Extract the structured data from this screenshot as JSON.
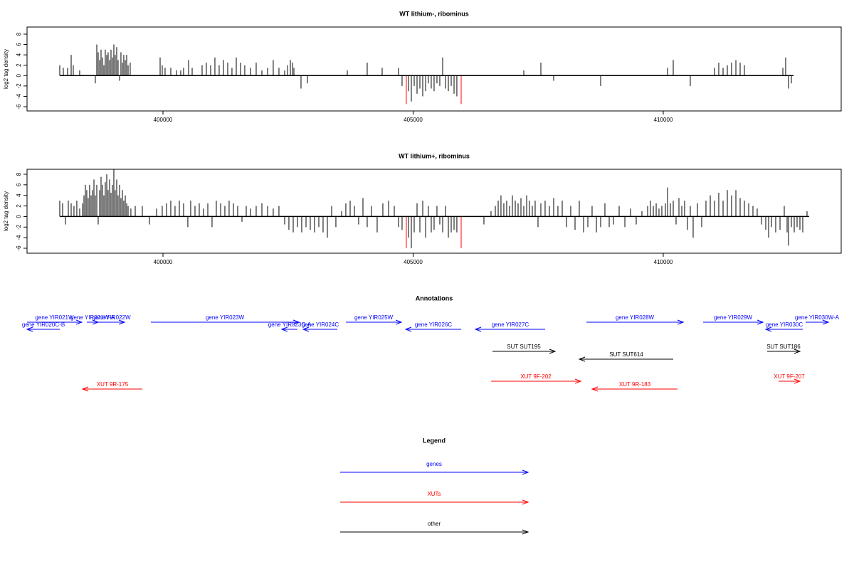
{
  "chart_data": [
    {
      "type": "spike",
      "title": "WT lithium-, ribominus",
      "y_label": "log2 tag density",
      "xlim": [
        397283,
        413556
      ],
      "ylim": [
        -6.82,
        9.37
      ],
      "xticks": [
        400000,
        405000,
        410000
      ],
      "yticks": [
        -6,
        -4,
        -2,
        0,
        2,
        4,
        6,
        8
      ],
      "series": [
        {
          "color": "#000000",
          "x": [
            397937,
            398008,
            398094,
            398165,
            398207,
            398335,
            398648,
            398677,
            398705,
            398734,
            398762,
            398790,
            398819,
            398847,
            398876,
            398904,
            398933,
            398961,
            398990,
            399018,
            399046,
            399075,
            399103,
            399132,
            399160,
            399189,
            399217,
            399246,
            399274,
            399303,
            399345,
            399943,
            399985,
            400042,
            400156,
            400270,
            400355,
            400412,
            400512,
            400583,
            400782,
            400867,
            400953,
            401038,
            401123,
            401209,
            401294,
            401379,
            401465,
            401550,
            401635,
            401749,
            401863,
            401977,
            402091,
            402204,
            402318,
            402432,
            402489,
            402546,
            402588,
            402617,
            402759,
            402887,
            403684,
            404082,
            404381,
            404708,
            404779,
            404907,
            404964,
            405021,
            405078,
            405135,
            405192,
            405249,
            405305,
            405362,
            405419,
            405476,
            405533,
            405590,
            405647,
            405704,
            405761,
            405818,
            405874,
            407212,
            407553,
            407809,
            408748,
            410085,
            410199,
            410540,
            411024,
            411109,
            411195,
            411280,
            411365,
            411451,
            411536,
            411621,
            412390,
            412446,
            412503,
            412560
          ],
          "values": [
            2,
            1.5,
            1.5,
            4,
            2,
            1,
            -1.5,
            6,
            4.5,
            3,
            5,
            3.5,
            2,
            5,
            4,
            4.5,
            3,
            5,
            3.5,
            6,
            4,
            5.5,
            3,
            -1,
            4.5,
            2.5,
            4,
            3,
            4,
            2,
            2.5,
            3.5,
            2,
            1.5,
            1.5,
            1,
            1,
            1.5,
            3,
            1.5,
            2,
            2.5,
            2,
            3.5,
            2,
            3,
            2.5,
            1.5,
            3.5,
            2.5,
            2,
            1.5,
            2.5,
            1,
            1.5,
            3,
            1.5,
            1,
            2,
            3,
            2.5,
            1.5,
            -2.5,
            -1.5,
            1,
            2.5,
            1.5,
            1.5,
            -2,
            -3,
            -5,
            -2,
            -3.5,
            -2.5,
            -4,
            -3,
            -1.5,
            -2.5,
            -3,
            -1.5,
            -2,
            3.5,
            -2.5,
            -3,
            -2,
            -3.5,
            -4,
            1,
            2.5,
            -1,
            -2,
            1.5,
            3,
            -2,
            1.5,
            2.5,
            1.5,
            2,
            2.5,
            3,
            2.5,
            2,
            1.5,
            3.5,
            -2.5,
            -1.5
          ]
        },
        {
          "color": "#ff0000",
          "x": [
            404864,
            405960
          ],
          "values": [
            -5.5,
            -5.5
          ]
        }
      ]
    },
    {
      "type": "spike",
      "title": "WT lithium+, ribominus",
      "y_label": "log2 tag density",
      "xlim": [
        397283,
        413556
      ],
      "ylim": [
        -6.94,
        8.94
      ],
      "xticks": [
        400000,
        405000,
        410000
      ],
      "yticks": [
        -6,
        -4,
        -2,
        0,
        2,
        4,
        6,
        8
      ],
      "series": [
        {
          "color": "#000000",
          "x": [
            397937,
            397994,
            398051,
            398108,
            398165,
            398221,
            398278,
            398335,
            398392,
            398421,
            398449,
            398477,
            398506,
            398534,
            398563,
            398591,
            398620,
            398648,
            398677,
            398705,
            398734,
            398762,
            398790,
            398819,
            398847,
            398876,
            398904,
            398933,
            398961,
            398990,
            399018,
            399046,
            399075,
            399103,
            399132,
            399160,
            399189,
            399217,
            399246,
            399274,
            399303,
            399359,
            399445,
            399587,
            399729,
            399872,
            399985,
            400071,
            400156,
            400241,
            400327,
            400412,
            400497,
            400554,
            400640,
            400725,
            400810,
            400896,
            400981,
            401066,
            401152,
            401237,
            401322,
            401408,
            401493,
            401579,
            401664,
            401749,
            401863,
            401977,
            402091,
            402204,
            402318,
            402432,
            402517,
            402603,
            402688,
            402773,
            402859,
            402944,
            403029,
            403115,
            403200,
            403286,
            403371,
            403456,
            403570,
            403655,
            403741,
            403826,
            403911,
            403997,
            404082,
            404167,
            404281,
            404395,
            404509,
            404623,
            404708,
            404779,
            404907,
            404964,
            405021,
            405078,
            405135,
            405192,
            405249,
            405305,
            405362,
            405419,
            405476,
            405533,
            405590,
            405647,
            405704,
            405761,
            405818,
            405874,
            406415,
            406557,
            406643,
            406700,
            406756,
            406813,
            406870,
            406927,
            406984,
            407041,
            407098,
            407155,
            407212,
            407269,
            407325,
            407382,
            407439,
            407496,
            407553,
            407638,
            407724,
            407809,
            407894,
            407980,
            408065,
            408150,
            408236,
            408321,
            408407,
            408492,
            408577,
            408663,
            408748,
            408833,
            408919,
            409004,
            409118,
            409232,
            409345,
            409459,
            409573,
            409687,
            409744,
            409801,
            409858,
            409914,
            409971,
            410042,
            410085,
            410142,
            410199,
            410256,
            410313,
            410370,
            410426,
            410483,
            410540,
            410597,
            410683,
            410768,
            410853,
            410939,
            411024,
            411109,
            411195,
            411280,
            411365,
            411451,
            411536,
            411621,
            411707,
            411792,
            411877,
            411963,
            412048,
            412105,
            412162,
            412247,
            412333,
            412418,
            412475,
            412503,
            412560,
            412617,
            412674,
            412731,
            412788,
            412873
          ],
          "values": [
            3,
            2.5,
            -1.5,
            3,
            2.5,
            2,
            3,
            1.5,
            2.5,
            4,
            6,
            5,
            3.5,
            6,
            4,
            5,
            7,
            4,
            6,
            -1.5,
            5,
            7.5,
            6,
            4,
            6.5,
            8,
            5,
            7,
            4.5,
            6,
            9,
            5,
            7,
            4,
            6,
            3.5,
            5,
            3,
            4,
            2.5,
            2,
            1.5,
            2,
            2,
            -1.5,
            1.5,
            2,
            2.5,
            3,
            2,
            3,
            2.5,
            -2,
            3,
            2,
            2.5,
            1.5,
            2.5,
            -2,
            3,
            2.5,
            2,
            3,
            2.5,
            2,
            -1,
            2,
            1.5,
            2,
            2.5,
            2,
            1.5,
            2,
            -1.5,
            -2.5,
            -3,
            -2,
            -3,
            -2,
            -2.5,
            -3,
            -2,
            -3,
            -4,
            2,
            -2,
            1,
            2.5,
            3,
            2,
            -1.5,
            3.5,
            -2,
            2,
            -3,
            2.5,
            3,
            2,
            -2,
            -2.5,
            -4,
            -6,
            -3,
            2.5,
            -3,
            3,
            -4,
            2,
            -3,
            -2.5,
            2,
            -1.5,
            -3,
            2,
            -4,
            -3,
            -2.5,
            -3,
            -1.5,
            1,
            2,
            3,
            4,
            2.5,
            3,
            2,
            4,
            3,
            2.5,
            3.5,
            2,
            4,
            3,
            2,
            3,
            -2,
            2.5,
            3,
            2,
            3.5,
            2,
            3,
            -2,
            2,
            -2.5,
            3,
            -3,
            -2,
            2,
            -3,
            -2,
            2.5,
            -2,
            -1.5,
            2,
            -2,
            1.5,
            -1.5,
            1,
            2,
            3,
            2,
            2.5,
            1.5,
            2,
            2.5,
            5.5,
            2.5,
            3,
            -1.5,
            3.5,
            2,
            3,
            -2.5,
            2,
            -4,
            2.5,
            -2,
            3,
            4,
            3,
            4.5,
            3,
            5,
            4,
            5,
            3.5,
            3,
            2.5,
            2,
            1.5,
            -1.5,
            -2.5,
            -4,
            -2,
            -3,
            -2.5,
            2,
            -3,
            -5.5,
            -2,
            -3,
            -2,
            -2.5,
            -3,
            1
          ]
        },
        {
          "color": "#ff0000",
          "x": [
            404864,
            405960
          ],
          "values": [
            -6,
            -6
          ]
        }
      ]
    }
  ],
  "annotations": {
    "title": "Annotations",
    "lanes": [
      {
        "features": [
          {
            "label": "gene YIR021W",
            "color": "#0000ff",
            "from": 397283,
            "to": 398378
          },
          {
            "label": "gene YIR021W-A",
            "color": "#0000ff",
            "from": 398478,
            "to": 398705
          },
          {
            "label": "gene YIR022W",
            "color": "#0000ff",
            "from": 398705,
            "to": 399232
          },
          {
            "label": "gene YIR023W",
            "color": "#0000ff",
            "from": 399758,
            "to": 402717
          },
          {
            "label": "gene YIR025W",
            "color": "#0000ff",
            "from": 403656,
            "to": 404766
          },
          {
            "label": "gene YIR028W",
            "color": "#0000ff",
            "from": 408464,
            "to": 410399
          },
          {
            "label": "gene YIR029W",
            "color": "#0000ff",
            "from": 410797,
            "to": 411992
          },
          {
            "label": "gene YIR030W-A",
            "color": "#0000ff",
            "from": 412845,
            "to": 413300
          }
        ]
      },
      {
        "features": [
          {
            "label": "gene YIR020C-B",
            "color": "#0000ff",
            "from": 397937,
            "to": 397283
          },
          {
            "label": "gene YIR023C-A",
            "color": "#0000ff",
            "from": 402688,
            "to": 402375
          },
          {
            "label": "gene YIR024C",
            "color": "#0000ff",
            "from": 403485,
            "to": 402802
          },
          {
            "label": "gene YIR026C",
            "color": "#0000ff",
            "from": 405960,
            "to": 404851
          },
          {
            "label": "gene YIR027C",
            "color": "#0000ff",
            "from": 407639,
            "to": 406245
          },
          {
            "label": "gene YIR030C",
            "color": "#0000ff",
            "from": 412788,
            "to": 412048
          }
        ]
      },
      {
        "features": [
          {
            "label": "SUT SUT195",
            "color": "#000000",
            "from": 406586,
            "to": 407838
          },
          {
            "label": "SUT SUT186",
            "color": "#000000",
            "from": 412077,
            "to": 412731
          }
        ]
      },
      {
        "features": [
          {
            "label": "SUT SUT614",
            "color": "#000000",
            "from": 410199,
            "to": 408322
          }
        ]
      },
      {
        "features": [
          {
            "label": "XUT 9F-202",
            "color": "#ff0000",
            "from": 406558,
            "to": 408350
          },
          {
            "label": "XUT 9F-207",
            "color": "#ff0000",
            "from": 412305,
            "to": 412731
          }
        ]
      },
      {
        "features": [
          {
            "label": "XUT 9R-175",
            "color": "#ff0000",
            "from": 399587,
            "to": 398393
          },
          {
            "label": "XUT 9R-183",
            "color": "#ff0000",
            "from": 410285,
            "to": 408578
          }
        ]
      }
    ]
  },
  "legend": {
    "title": "Legend",
    "items": [
      {
        "label": "genes",
        "color": "#0000ff"
      },
      {
        "label": "XUTs",
        "color": "#ff0000"
      },
      {
        "label": "other",
        "color": "#000000"
      }
    ]
  }
}
